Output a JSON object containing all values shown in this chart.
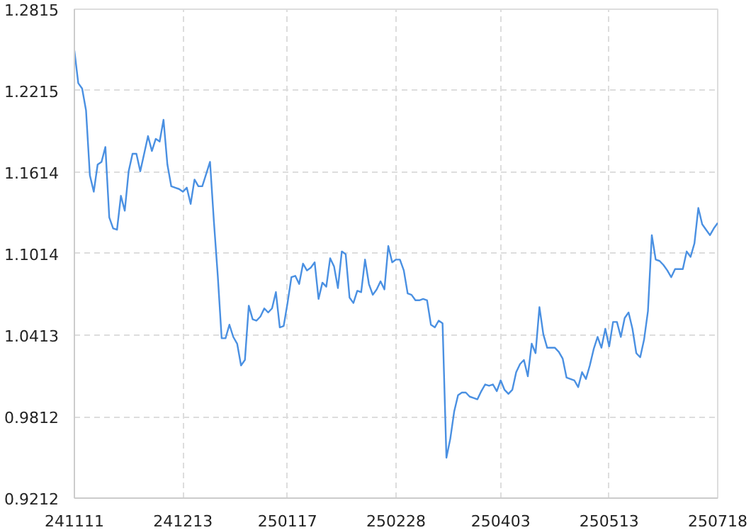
{
  "chart_data": {
    "type": "line",
    "categories": [
      "241111",
      null,
      null,
      null,
      null,
      null,
      null,
      null,
      null,
      null,
      null,
      null,
      null,
      null,
      null,
      null,
      null,
      null,
      null,
      null,
      null,
      null,
      null,
      null,
      null,
      null,
      null,
      null,
      "241213",
      null,
      null,
      null,
      null,
      null,
      null,
      null,
      null,
      null,
      null,
      null,
      null,
      null,
      null,
      null,
      null,
      null,
      null,
      null,
      null,
      null,
      null,
      null,
      null,
      null,
      null,
      "250117",
      null,
      null,
      null,
      null,
      null,
      null,
      null,
      null,
      null,
      null,
      null,
      null,
      null,
      null,
      null,
      null,
      null,
      null,
      null,
      null,
      null,
      null,
      null,
      null,
      null,
      null,
      null,
      "250228",
      null,
      null,
      null,
      null,
      null,
      null,
      null,
      null,
      null,
      null,
      null,
      null,
      null,
      null,
      null,
      null,
      null,
      null,
      null,
      null,
      null,
      null,
      null,
      null,
      null,
      null,
      "250403",
      null,
      null,
      null,
      null,
      null,
      null,
      null,
      null,
      null,
      null,
      null,
      null,
      null,
      null,
      null,
      null,
      null,
      null,
      null,
      null,
      null,
      null,
      null,
      null,
      null,
      null,
      null,
      "250513",
      null,
      null,
      null,
      null,
      null,
      null,
      null,
      null,
      null,
      null,
      null,
      null,
      null,
      null,
      null,
      null,
      null,
      null,
      null,
      null,
      null,
      null,
      null,
      null,
      null,
      null,
      null,
      "250718"
    ],
    "series": [
      {
        "color": "#4a90e2",
        "values": [
          1.251,
          1.227,
          1.223,
          1.207,
          1.159,
          1.147,
          1.167,
          1.169,
          1.18,
          1.128,
          1.12,
          1.119,
          1.144,
          1.133,
          1.162,
          1.175,
          1.175,
          1.162,
          1.175,
          1.188,
          1.177,
          1.186,
          1.184,
          1.2,
          1.167,
          1.151,
          1.15,
          1.149,
          1.147,
          1.15,
          1.138,
          1.156,
          1.151,
          1.151,
          1.16,
          1.169,
          1.125,
          1.085,
          1.039,
          1.039,
          1.049,
          1.04,
          1.035,
          1.019,
          1.023,
          1.063,
          1.053,
          1.052,
          1.055,
          1.061,
          1.058,
          1.061,
          1.073,
          1.047,
          1.048,
          1.065,
          1.084,
          1.085,
          1.079,
          1.094,
          1.089,
          1.091,
          1.095,
          1.068,
          1.08,
          1.077,
          1.098,
          1.092,
          1.076,
          1.103,
          1.101,
          1.069,
          1.065,
          1.074,
          1.073,
          1.097,
          1.079,
          1.071,
          1.075,
          1.081,
          1.075,
          1.107,
          1.095,
          1.097,
          1.097,
          1.089,
          1.072,
          1.071,
          1.067,
          1.067,
          1.068,
          1.067,
          1.049,
          1.047,
          1.052,
          1.05,
          0.951,
          0.965,
          0.985,
          0.997,
          0.999,
          0.999,
          0.996,
          0.995,
          0.994,
          1.0,
          1.005,
          1.004,
          1.005,
          1.0,
          1.008,
          1.001,
          0.998,
          1.001,
          1.014,
          1.02,
          1.023,
          1.011,
          1.035,
          1.028,
          1.062,
          1.042,
          1.032,
          1.032,
          1.032,
          1.029,
          1.024,
          1.01,
          1.009,
          1.008,
          1.003,
          1.014,
          1.009,
          1.019,
          1.031,
          1.04,
          1.032,
          1.046,
          1.033,
          1.051,
          1.051,
          1.04,
          1.054,
          1.058,
          1.046,
          1.028,
          1.025,
          1.038,
          1.059,
          1.115,
          1.097,
          1.096,
          1.093,
          1.089,
          1.084,
          1.09,
          1.09,
          1.09,
          1.103,
          1.099,
          1.109,
          1.135,
          1.123,
          1.119,
          1.115,
          1.12,
          1.124
        ]
      }
    ],
    "ylim": [
      0.9212,
      1.2815
    ],
    "yticks": [
      0.9212,
      0.9812,
      1.0413,
      1.1014,
      1.1614,
      1.2215,
      1.2815
    ],
    "grid": true,
    "line_style": "solid"
  }
}
